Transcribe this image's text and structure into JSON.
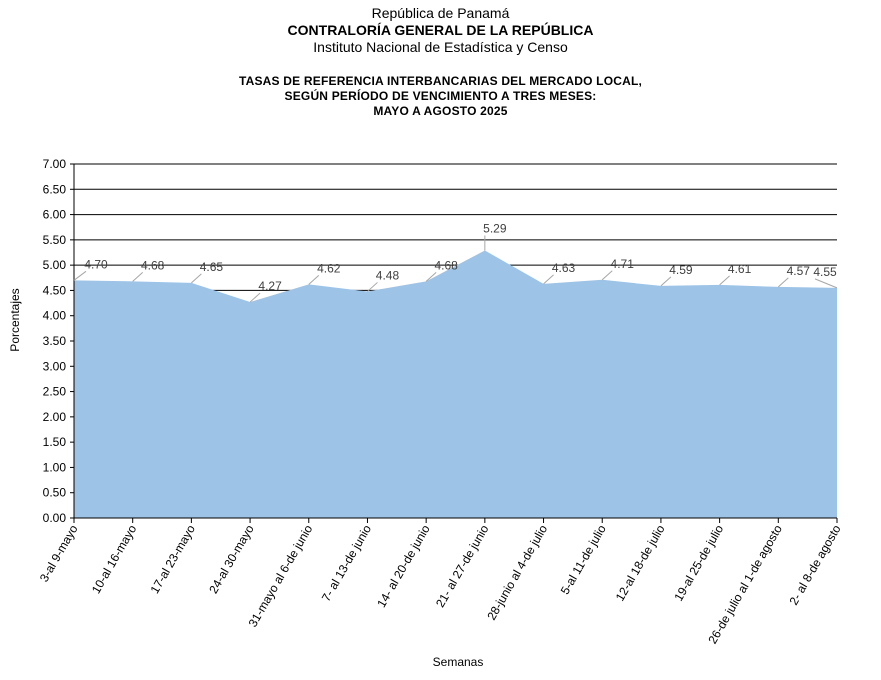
{
  "header": {
    "line1": "República de Panamá",
    "line2": "CONTRALORÍA GENERAL DE LA REPÚBLICA",
    "line3": "Instituto Nacional de Estadística y Censo"
  },
  "chart_data": {
    "type": "area",
    "title": [
      "TASAS DE REFERENCIA INTERBANCARIAS DEL MERCADO LOCAL,",
      "SEGÚN PERÍODO DE VENCIMIENTO A TRES MESES:",
      "MAYO A AGOSTO 2025"
    ],
    "xlabel": "Semanas",
    "ylabel": "Porcentajes",
    "ylim": [
      0,
      7
    ],
    "yticks": [
      "0.00",
      "0.50",
      "1.00",
      "1.50",
      "2.00",
      "2.50",
      "3.00",
      "3.50",
      "4.00",
      "4.50",
      "5.00",
      "5.50",
      "6.00",
      "6.50",
      "7.00"
    ],
    "categories": [
      "3-al 9-mayo",
      "10-al 16-mayo",
      "17-al 23-mayo",
      "24-al 30-mayo",
      "31-mayo al 6-de junio",
      "7- al 13-de junio",
      "14- al 20-de junio",
      "21- al 27-de junio",
      "28-junio al 4-de julio",
      "5-al 11-de julio",
      "12-al 18-de julio",
      "19-al 25-de julio",
      "26-de julio al 1-de agosto",
      "2- al 8-de agosto"
    ],
    "values": [
      4.7,
      4.68,
      4.65,
      4.27,
      4.62,
      4.48,
      4.68,
      5.29,
      4.63,
      4.71,
      4.59,
      4.61,
      4.57,
      4.55
    ],
    "labels": [
      "4.70",
      "4.68",
      "4.65",
      "4.27",
      "4.62",
      "4.48",
      "4.68",
      "5.29",
      "4.63",
      "4.71",
      "4.59",
      "4.61",
      "4.57",
      "4.55"
    ],
    "fill_color": "#9dc3e6",
    "grid": true,
    "legend": "none"
  }
}
